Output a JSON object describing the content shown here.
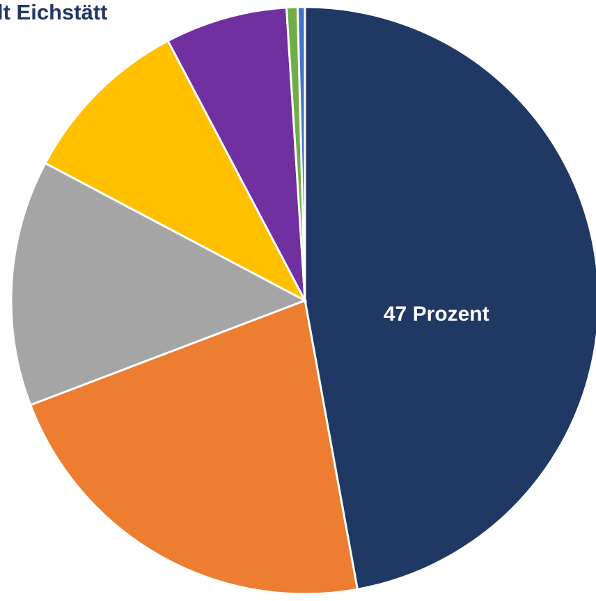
{
  "chart_data": {
    "type": "pie",
    "title": "lt Eichstätt",
    "categories": [
      null,
      null,
      null,
      null,
      null,
      null,
      null
    ],
    "values": [
      47,
      22,
      13.5,
      9.5,
      6.7,
      0.6,
      0.4
    ],
    "value_labels": [
      "47 Prozent",
      null,
      null,
      null,
      null,
      null,
      null
    ],
    "colors": [
      "#203864",
      "#ed7d31",
      "#a5a5a5",
      "#ffc000",
      "#7030a0",
      "#70ad47",
      "#4472c4"
    ]
  }
}
